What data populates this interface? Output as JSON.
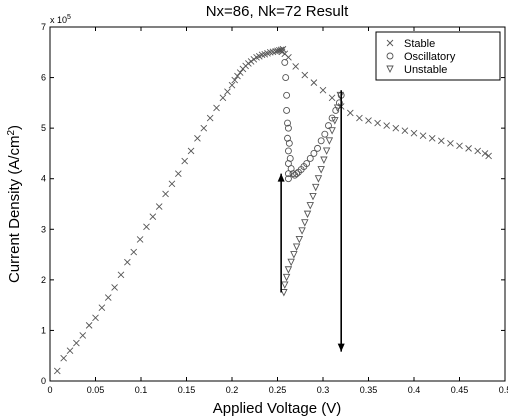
{
  "chart_data": {
    "type": "scatter",
    "title": "Nx=86, Nk=72 Result",
    "xlabel": "Applied Voltage (V)",
    "ylabel": "Current Density (A/cm²)",
    "ylabel_main": "Current Density (A/cm",
    "ylabel_sup": "2",
    "ylabel_end": ")",
    "y_exponent_base": "x 10",
    "y_exponent_power": "5",
    "xlim": [
      0,
      0.5
    ],
    "ylim": [
      0,
      700000
    ],
    "x_ticks": [
      "0",
      "0.05",
      "0.1",
      "0.15",
      "0.2",
      "0.25",
      "0.3",
      "0.35",
      "0.4",
      "0.45",
      "0.5"
    ],
    "x_tick_values": [
      0,
      0.05,
      0.1,
      0.15,
      0.2,
      0.25,
      0.3,
      0.35,
      0.4,
      0.45,
      0.5
    ],
    "y_ticks": [
      "0",
      "1",
      "2",
      "3",
      "4",
      "5",
      "6",
      "7"
    ],
    "y_tick_values": [
      0,
      100000,
      200000,
      300000,
      400000,
      500000,
      600000,
      700000
    ],
    "grid": false,
    "legend_position": "top-right",
    "series": [
      {
        "name": "Stable",
        "marker": "x",
        "x": [
          0.008,
          0.015,
          0.022,
          0.029,
          0.036,
          0.043,
          0.05,
          0.057,
          0.064,
          0.071,
          0.078,
          0.085,
          0.092,
          0.099,
          0.106,
          0.113,
          0.12,
          0.127,
          0.134,
          0.141,
          0.148,
          0.155,
          0.162,
          0.169,
          0.176,
          0.183,
          0.19,
          0.195,
          0.2,
          0.203,
          0.206,
          0.209,
          0.212,
          0.215,
          0.218,
          0.221,
          0.224,
          0.227,
          0.23,
          0.233,
          0.236,
          0.239,
          0.242,
          0.245,
          0.248,
          0.25,
          0.252,
          0.254,
          0.256,
          0.255,
          0.258,
          0.262,
          0.27,
          0.28,
          0.29,
          0.3,
          0.31,
          0.32,
          0.33,
          0.34,
          0.35,
          0.36,
          0.37,
          0.38,
          0.39,
          0.4,
          0.41,
          0.42,
          0.43,
          0.44,
          0.45,
          0.46,
          0.47,
          0.478,
          0.482
        ],
        "y": [
          20000,
          45000,
          60000,
          75000,
          90000,
          110000,
          125000,
          145000,
          165000,
          185000,
          210000,
          235000,
          255000,
          280000,
          305000,
          325000,
          345000,
          370000,
          390000,
          410000,
          435000,
          455000,
          480000,
          500000,
          520000,
          540000,
          560000,
          572000,
          585000,
          595000,
          603000,
          610000,
          617000,
          623000,
          628000,
          632000,
          636000,
          640000,
          642000,
          645000,
          646000,
          648000,
          650000,
          651000,
          652000,
          653000,
          654000,
          655000,
          656000,
          651000,
          647000,
          640000,
          622000,
          605000,
          590000,
          575000,
          560000,
          543000,
          530000,
          520000,
          515000,
          510000,
          505000,
          500000,
          495000,
          490000,
          485000,
          480000,
          475000,
          470000,
          465000,
          460000,
          455000,
          450000,
          445000
        ]
      },
      {
        "name": "Oscillatory",
        "marker": "o",
        "x": [
          0.258,
          0.259,
          0.26,
          0.26,
          0.261,
          0.261,
          0.262,
          0.262,
          0.262,
          0.262,
          0.262,
          0.263,
          0.264,
          0.265,
          0.267,
          0.269,
          0.271,
          0.273,
          0.276,
          0.279,
          0.282,
          0.286,
          0.29,
          0.294,
          0.298,
          0.302,
          0.306,
          0.31,
          0.314,
          0.318,
          0.32
        ],
        "y": [
          630000,
          600000,
          565000,
          535000,
          510000,
          480000,
          455000,
          430000,
          410000,
          400000,
          500000,
          470000,
          440000,
          420000,
          410000,
          407000,
          410000,
          413000,
          418000,
          424000,
          430000,
          440000,
          450000,
          460000,
          475000,
          488000,
          505000,
          520000,
          535000,
          550000,
          565000
        ]
      },
      {
        "name": "Unstable",
        "marker": "v",
        "x": [
          0.257,
          0.258,
          0.26,
          0.262,
          0.265,
          0.268,
          0.271,
          0.274,
          0.277,
          0.28,
          0.283,
          0.286,
          0.289,
          0.292,
          0.295,
          0.298,
          0.301,
          0.304,
          0.307,
          0.31,
          0.313,
          0.316,
          0.319
        ],
        "y": [
          175000,
          190000,
          205000,
          220000,
          235000,
          250000,
          265000,
          280000,
          297000,
          313000,
          330000,
          347000,
          365000,
          383000,
          400000,
          418000,
          437000,
          455000,
          475000,
          495000,
          515000,
          540000,
          565000
        ]
      }
    ],
    "annotations": [
      {
        "type": "arrow",
        "x": [
          0.254,
          0.254
        ],
        "y": [
          175000,
          410000
        ]
      },
      {
        "type": "arrow",
        "x": [
          0.32,
          0.32
        ],
        "y": [
          575000,
          58000
        ]
      }
    ]
  }
}
